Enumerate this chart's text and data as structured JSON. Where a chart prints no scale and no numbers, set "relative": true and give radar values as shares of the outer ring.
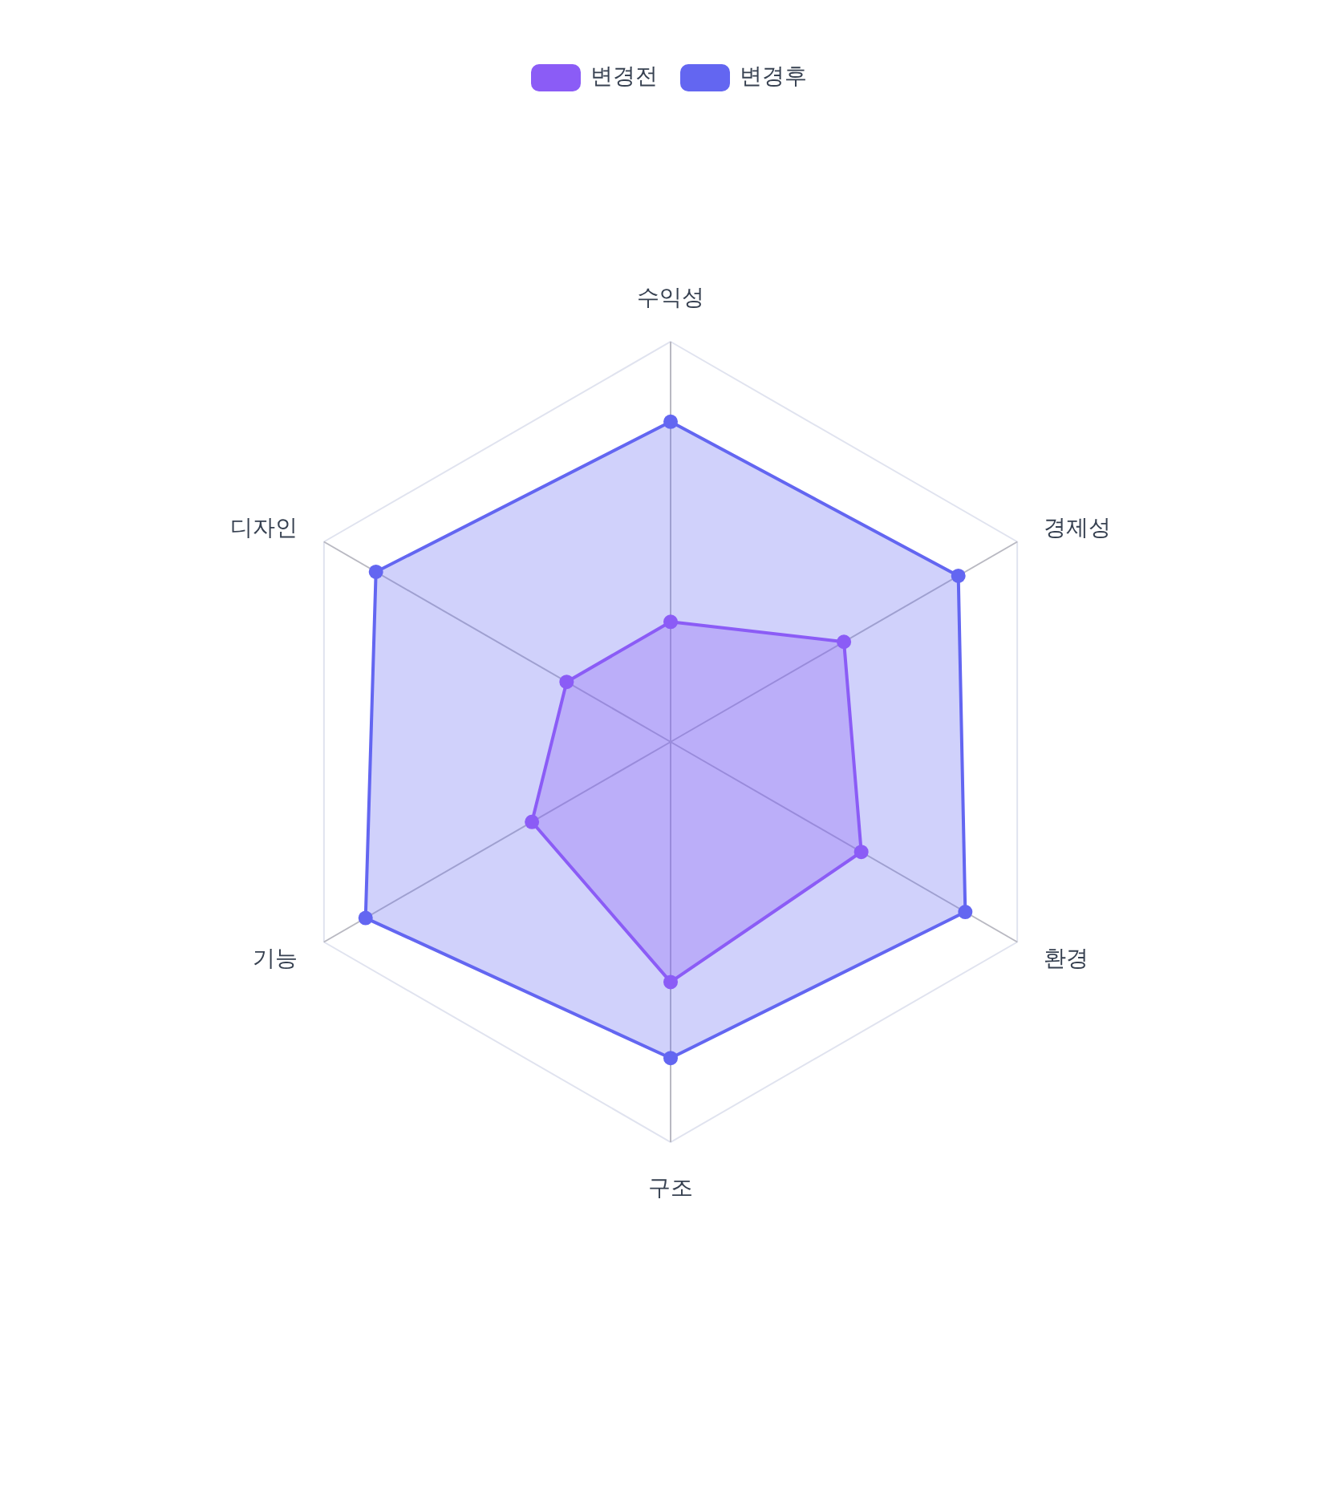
{
  "chart_data": {
    "type": "radar",
    "relative": true,
    "categories": [
      "수익성",
      "경제성",
      "환경",
      "구조",
      "기능",
      "디자인"
    ],
    "series": [
      {
        "name": "변경전",
        "color": "#8b5cf6",
        "values": [
          0.3,
          0.5,
          0.55,
          0.6,
          0.4,
          0.3
        ]
      },
      {
        "name": "변경후",
        "color": "#6366f1",
        "values": [
          0.8,
          0.83,
          0.85,
          0.79,
          0.88,
          0.85
        ]
      }
    ],
    "grid": true,
    "legend": "top",
    "marker": "circle"
  }
}
